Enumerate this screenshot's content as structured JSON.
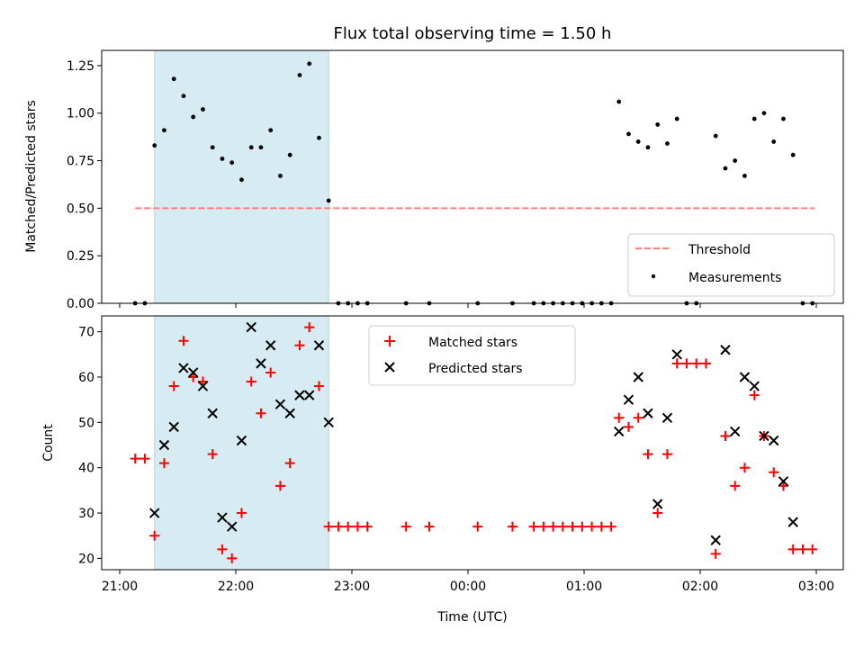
{
  "chart_data": [
    {
      "type": "scatter",
      "title": "Flux total observing time = 1.50 h",
      "xlabel": "",
      "ylabel": "Matched/Predicted stars",
      "xlim": [
        "20:50",
        "03:03"
      ],
      "ylim": [
        0,
        1.33
      ],
      "xticks": [
        "21:00",
        "22:00",
        "23:00",
        "00:00",
        "01:00",
        "02:00",
        "03:00"
      ],
      "yticks": [
        "0.00",
        "0.25",
        "0.50",
        "0.75",
        "1.00",
        "1.25"
      ],
      "shaded_region": {
        "x_start": "21:18",
        "x_end": "22:48",
        "color": "#add8e6"
      },
      "threshold": {
        "name": "Threshold",
        "y": 0.5,
        "x_start": "21:08",
        "x_end": "02:59",
        "color": "#ff8080",
        "style": "dashed"
      },
      "series": [
        {
          "name": "Measurements",
          "marker": "dot",
          "color": "#000000",
          "points": [
            [
              "21:08",
              0.0
            ],
            [
              "21:13",
              0.0
            ],
            [
              "21:18",
              0.83
            ],
            [
              "21:23",
              0.91
            ],
            [
              "21:28",
              1.18
            ],
            [
              "21:33",
              1.09
            ],
            [
              "21:38",
              0.98
            ],
            [
              "21:43",
              1.02
            ],
            [
              "21:48",
              0.82
            ],
            [
              "21:53",
              0.76
            ],
            [
              "21:58",
              0.74
            ],
            [
              "22:03",
              0.65
            ],
            [
              "22:08",
              0.82
            ],
            [
              "22:13",
              0.82
            ],
            [
              "22:18",
              0.91
            ],
            [
              "22:23",
              0.67
            ],
            [
              "22:28",
              0.78
            ],
            [
              "22:33",
              1.2
            ],
            [
              "22:38",
              1.26
            ],
            [
              "22:43",
              0.87
            ],
            [
              "22:48",
              0.54
            ],
            [
              "22:53",
              0.0
            ],
            [
              "22:58",
              0.0
            ],
            [
              "23:03",
              0.0
            ],
            [
              "23:08",
              0.0
            ],
            [
              "23:28",
              0.0
            ],
            [
              "23:40",
              0.0
            ],
            [
              "00:05",
              0.0
            ],
            [
              "00:23",
              0.0
            ],
            [
              "00:34",
              0.0
            ],
            [
              "00:39",
              0.0
            ],
            [
              "00:44",
              0.0
            ],
            [
              "00:49",
              0.0
            ],
            [
              "00:54",
              0.0
            ],
            [
              "00:59",
              0.0
            ],
            [
              "01:04",
              0.0
            ],
            [
              "01:09",
              0.0
            ],
            [
              "01:14",
              0.0
            ],
            [
              "01:18",
              1.06
            ],
            [
              "01:23",
              0.89
            ],
            [
              "01:28",
              0.85
            ],
            [
              "01:33",
              0.82
            ],
            [
              "01:38",
              0.94
            ],
            [
              "01:43",
              0.84
            ],
            [
              "01:48",
              0.97
            ],
            [
              "01:53",
              0.0
            ],
            [
              "01:58",
              0.0
            ],
            [
              "02:08",
              0.88
            ],
            [
              "02:13",
              0.71
            ],
            [
              "02:18",
              0.75
            ],
            [
              "02:23",
              0.67
            ],
            [
              "02:28",
              0.97
            ],
            [
              "02:33",
              1.0
            ],
            [
              "02:38",
              0.85
            ],
            [
              "02:43",
              0.97
            ],
            [
              "02:48",
              0.78
            ],
            [
              "02:53",
              0.0
            ],
            [
              "02:58",
              0.0
            ]
          ]
        }
      ],
      "legend": {
        "position": "lower right",
        "entries": [
          "Threshold",
          "Measurements"
        ]
      }
    },
    {
      "type": "scatter",
      "title": "",
      "xlabel": "Time (UTC)",
      "ylabel": "Count",
      "xlim": [
        "20:50",
        "03:03"
      ],
      "ylim": [
        17.5,
        73.5
      ],
      "xticks": [
        "21:00",
        "22:00",
        "23:00",
        "00:00",
        "01:00",
        "02:00",
        "03:00"
      ],
      "yticks": [
        "20",
        "30",
        "40",
        "50",
        "60",
        "70"
      ],
      "shaded_region": {
        "x_start": "21:18",
        "x_end": "22:48",
        "color": "#add8e6"
      },
      "series": [
        {
          "name": "Matched stars",
          "marker": "plus",
          "color": "#ff0000",
          "points": [
            [
              "21:08",
              42
            ],
            [
              "21:13",
              42
            ],
            [
              "21:18",
              25
            ],
            [
              "21:23",
              41
            ],
            [
              "21:28",
              58
            ],
            [
              "21:33",
              68
            ],
            [
              "21:38",
              60
            ],
            [
              "21:43",
              59
            ],
            [
              "21:48",
              43
            ],
            [
              "21:53",
              22
            ],
            [
              "21:58",
              20
            ],
            [
              "22:03",
              30
            ],
            [
              "22:08",
              59
            ],
            [
              "22:13",
              52
            ],
            [
              "22:18",
              61
            ],
            [
              "22:23",
              36
            ],
            [
              "22:28",
              41
            ],
            [
              "22:33",
              67
            ],
            [
              "22:38",
              71
            ],
            [
              "22:43",
              58
            ],
            [
              "22:48",
              27
            ],
            [
              "22:53",
              27
            ],
            [
              "22:58",
              27
            ],
            [
              "23:03",
              27
            ],
            [
              "23:08",
              27
            ],
            [
              "23:28",
              27
            ],
            [
              "23:40",
              27
            ],
            [
              "00:05",
              27
            ],
            [
              "00:23",
              27
            ],
            [
              "00:34",
              27
            ],
            [
              "00:39",
              27
            ],
            [
              "00:44",
              27
            ],
            [
              "00:49",
              27
            ],
            [
              "00:54",
              27
            ],
            [
              "00:59",
              27
            ],
            [
              "01:04",
              27
            ],
            [
              "01:09",
              27
            ],
            [
              "01:14",
              27
            ],
            [
              "01:18",
              51
            ],
            [
              "01:23",
              49
            ],
            [
              "01:28",
              51
            ],
            [
              "01:33",
              43
            ],
            [
              "01:38",
              30
            ],
            [
              "01:43",
              43
            ],
            [
              "01:48",
              63
            ],
            [
              "01:53",
              63
            ],
            [
              "01:58",
              63
            ],
            [
              "02:03",
              63
            ],
            [
              "02:08",
              21
            ],
            [
              "02:13",
              47
            ],
            [
              "02:18",
              36
            ],
            [
              "02:23",
              40
            ],
            [
              "02:28",
              56
            ],
            [
              "02:33",
              47
            ],
            [
              "02:38",
              39
            ],
            [
              "02:43",
              36
            ],
            [
              "02:48",
              22
            ],
            [
              "02:53",
              22
            ],
            [
              "02:58",
              22
            ]
          ]
        },
        {
          "name": "Predicted stars",
          "marker": "x",
          "color": "#000000",
          "points": [
            [
              "21:18",
              30
            ],
            [
              "21:23",
              45
            ],
            [
              "21:28",
              49
            ],
            [
              "21:33",
              62
            ],
            [
              "21:38",
              61
            ],
            [
              "21:43",
              58
            ],
            [
              "21:48",
              52
            ],
            [
              "21:53",
              29
            ],
            [
              "21:58",
              27
            ],
            [
              "22:03",
              46
            ],
            [
              "22:08",
              71
            ],
            [
              "22:13",
              63
            ],
            [
              "22:18",
              67
            ],
            [
              "22:23",
              54
            ],
            [
              "22:28",
              52
            ],
            [
              "22:33",
              56
            ],
            [
              "22:38",
              56
            ],
            [
              "22:43",
              67
            ],
            [
              "22:48",
              50
            ],
            [
              "01:18",
              48
            ],
            [
              "01:23",
              55
            ],
            [
              "01:28",
              60
            ],
            [
              "01:33",
              52
            ],
            [
              "01:38",
              32
            ],
            [
              "01:43",
              51
            ],
            [
              "01:48",
              65
            ],
            [
              "02:08",
              24
            ],
            [
              "02:13",
              66
            ],
            [
              "02:18",
              48
            ],
            [
              "02:23",
              60
            ],
            [
              "02:28",
              58
            ],
            [
              "02:33",
              47
            ],
            [
              "02:38",
              46
            ],
            [
              "02:43",
              37
            ],
            [
              "02:48",
              28
            ]
          ]
        }
      ],
      "legend": {
        "position": "upper center",
        "entries": [
          "Matched stars",
          "Predicted stars"
        ]
      }
    }
  ]
}
